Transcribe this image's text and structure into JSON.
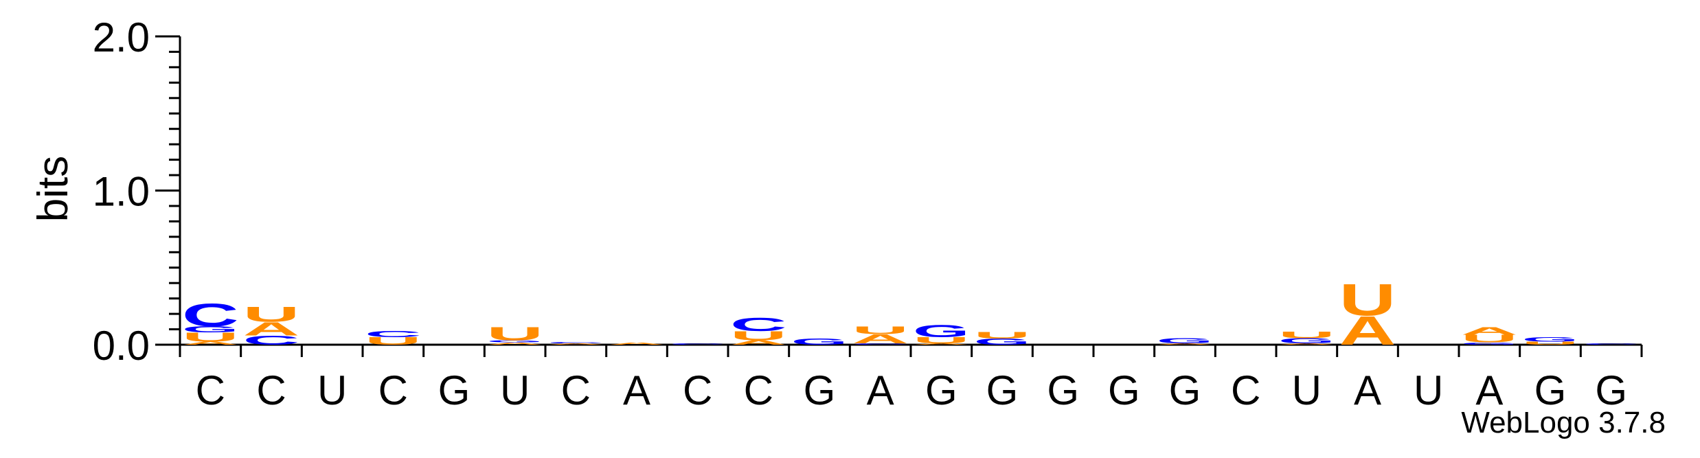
{
  "chart_data": {
    "type": "sequence-logo",
    "ylabel": "bits",
    "ylim": [
      0,
      2.0
    ],
    "yticks": [
      {
        "value": 0.0,
        "label": "0.0"
      },
      {
        "value": 1.0,
        "label": "1.0"
      },
      {
        "value": 2.0,
        "label": "2.0"
      }
    ],
    "consensus": [
      "C",
      "C",
      "U",
      "C",
      "G",
      "U",
      "C",
      "A",
      "C",
      "C",
      "G",
      "A",
      "G",
      "G",
      "G",
      "G",
      "G",
      "C",
      "U",
      "A",
      "U",
      "A",
      "G",
      "G"
    ],
    "colors": {
      "A": "#ff8c00",
      "U": "#ff8c00",
      "C": "#0000ff",
      "G": "#0000ff"
    },
    "positions": [
      [
        [
          "A",
          0.02
        ],
        [
          "U",
          0.06
        ],
        [
          "G",
          0.04
        ],
        [
          "C",
          0.15
        ]
      ],
      [
        [
          "C",
          0.06
        ],
        [
          "A",
          0.09
        ],
        [
          "U",
          0.1
        ]
      ],
      [],
      [
        [
          "U",
          0.05
        ],
        [
          "C",
          0.04
        ]
      ],
      [],
      [
        [
          "A",
          0.015
        ],
        [
          "G",
          0.015
        ],
        [
          "U",
          0.09
        ]
      ],
      [
        [
          "A",
          0.01
        ],
        [
          "C",
          0.01
        ]
      ],
      [
        [
          "A",
          0.015
        ]
      ],
      [
        [
          "C",
          0.01
        ]
      ],
      [
        [
          "A",
          0.03
        ],
        [
          "U",
          0.06
        ],
        [
          "C",
          0.09
        ]
      ],
      [
        [
          "G",
          0.04
        ]
      ],
      [
        [
          "C",
          0.01
        ],
        [
          "A",
          0.06
        ],
        [
          "U",
          0.05
        ]
      ],
      [
        [
          "A",
          0.01
        ],
        [
          "U",
          0.04
        ],
        [
          "G",
          0.08
        ]
      ],
      [
        [
          "G",
          0.04
        ],
        [
          "U",
          0.045
        ]
      ],
      [],
      [],
      [
        [
          "A",
          0.008
        ],
        [
          "G",
          0.035
        ]
      ],
      [],
      [
        [
          "A",
          0.008
        ],
        [
          "G",
          0.035
        ],
        [
          "U",
          0.045
        ]
      ],
      [
        [
          "A",
          0.19
        ],
        [
          "U",
          0.21
        ]
      ],
      [],
      [
        [
          "G",
          0.015
        ],
        [
          "U",
          0.05
        ],
        [
          "A",
          0.05
        ]
      ],
      [
        [
          "U",
          0.02
        ],
        [
          "G",
          0.03
        ]
      ],
      [
        [
          "C",
          0.01
        ]
      ]
    ]
  },
  "credit": "WebLogo 3.7.8"
}
